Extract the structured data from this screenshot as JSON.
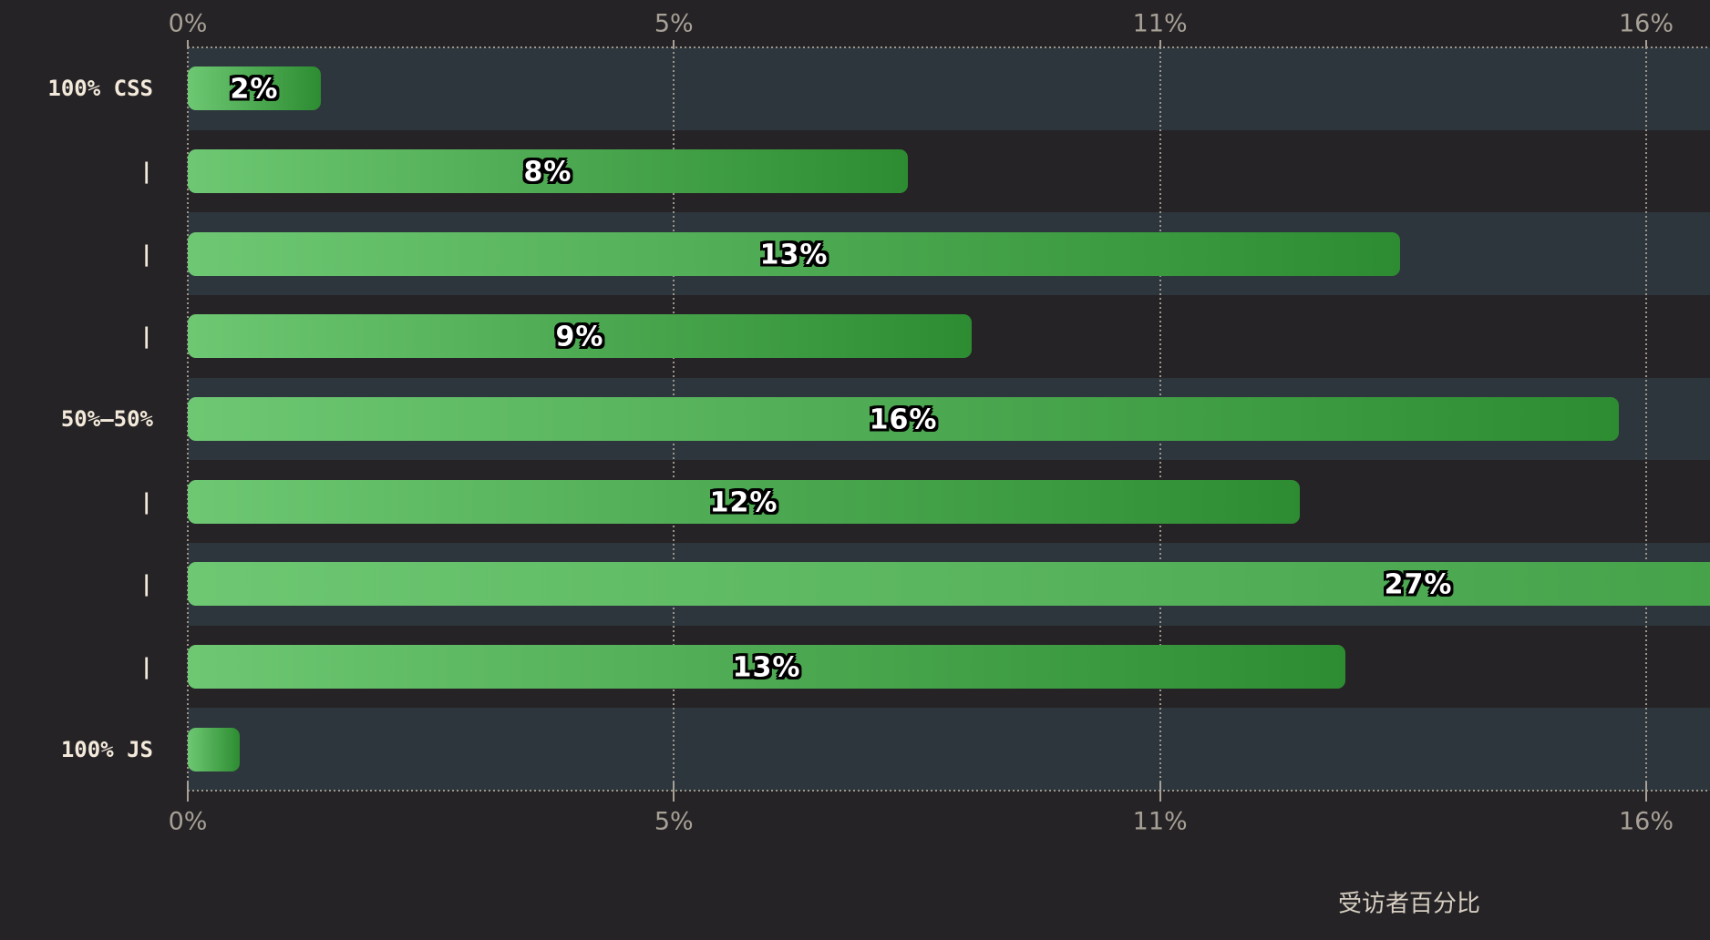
{
  "chart_data": {
    "type": "bar",
    "orientation": "horizontal",
    "xlabel": "受访者百分比",
    "x_axis": {
      "min_pct": 0,
      "max_tick_pct": 16,
      "grid": "dotted",
      "tick_positions": "top-and-bottom"
    },
    "x_ticks": [
      {
        "label": "0%",
        "pct": 0
      },
      {
        "label": "5%",
        "pct": 5.333
      },
      {
        "label": "11%",
        "pct": 10.667
      },
      {
        "label": "16%",
        "pct": 16
      }
    ],
    "rows": [
      {
        "category": "100% CSS",
        "value_label": "2%",
        "length_pct": 1.46
      },
      {
        "category": "|",
        "value_label": "8%",
        "length_pct": 7.9
      },
      {
        "category": "|",
        "value_label": "13%",
        "length_pct": 13.3
      },
      {
        "category": "|",
        "value_label": "9%",
        "length_pct": 8.6
      },
      {
        "category": "50%–50%",
        "value_label": "16%",
        "length_pct": 15.7
      },
      {
        "category": "|",
        "value_label": "12%",
        "length_pct": 12.2
      },
      {
        "category": "|",
        "value_label": "27%",
        "length_pct": 27.0
      },
      {
        "category": "|",
        "value_label": "13%",
        "length_pct": 12.7
      },
      {
        "category": "100% JS",
        "value_label": "",
        "length_pct": 0.57
      }
    ],
    "notes": {
      "clipped_bar": "27% bar extends past right edge of view",
      "row_striping": "odd rows have blue-gray background band starting at 0% line"
    },
    "colors": {
      "background": "#262326",
      "row_band": "#2d363c",
      "bar_gradient_start": "#6ec873",
      "bar_gradient_end": "#2d8c31",
      "grid_dot": "#9b958c",
      "tick_label": "#a6a096",
      "category_label": "#f3eadb",
      "value_label": "#ffffff",
      "value_outline": "#000000",
      "axis_title": "#d5cec1"
    }
  }
}
